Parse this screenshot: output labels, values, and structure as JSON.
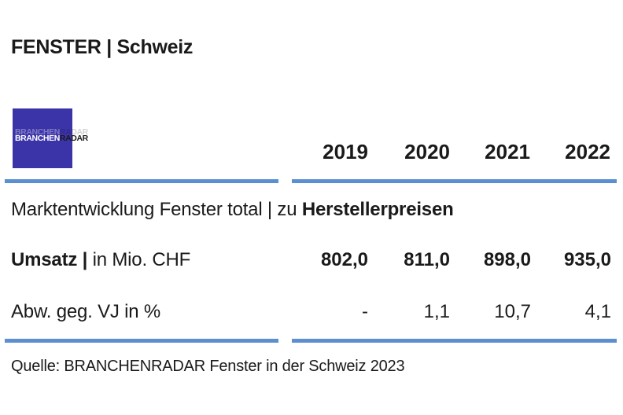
{
  "chart_data": {
    "type": "table",
    "title": "FENSTER | Schweiz",
    "logo": {
      "part1": "BRANCHEN",
      "part2": "RADAR"
    },
    "subtitle_plain": "Marktentwicklung Fenster total | zu ",
    "subtitle_bold": "Herstellerpreisen",
    "years": [
      "2019",
      "2020",
      "2021",
      "2022"
    ],
    "rows": [
      {
        "label_bold": "Umsatz |",
        "label_plain": " in Mio. CHF",
        "values": [
          "802,0",
          "811,0",
          "898,0",
          "935,0"
        ]
      },
      {
        "label_bold": "",
        "label_plain": "Abw. geg. VJ in %",
        "values": [
          "-",
          "1,1",
          "10,7",
          "4,1"
        ]
      }
    ],
    "source": "Quelle: BRANCHENRADAR Fenster in der Schweiz 2023",
    "colors": {
      "rule": "#5b8fd0",
      "logo_bg": "#3b33a8"
    }
  }
}
